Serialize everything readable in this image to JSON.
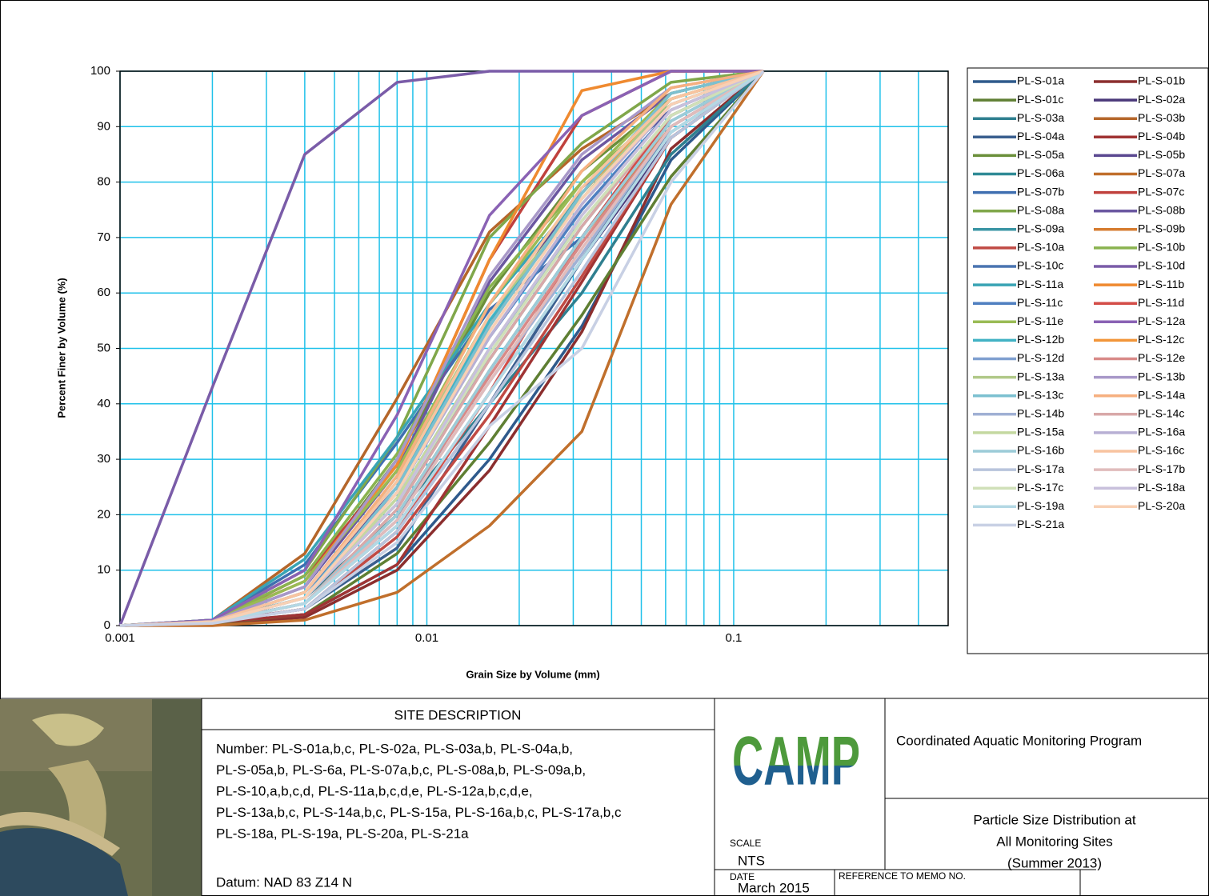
{
  "chart_data": {
    "type": "line",
    "x_label": "Grain Size by Volume (mm)",
    "y_label": "Percent Finer by Volume (%)",
    "log_x": true,
    "grid": true,
    "x": [
      0.001,
      0.002,
      0.004,
      0.008,
      0.016,
      0.032,
      0.0625,
      0.125
    ],
    "xlim": [
      0.001,
      0.5
    ],
    "xticks": [
      0.001,
      0.01,
      0.1
    ],
    "xgrid": [
      0.002,
      0.003,
      0.004,
      0.005,
      0.006,
      0.007,
      0.008,
      0.009,
      0.02,
      0.03,
      0.04,
      0.05,
      0.06,
      0.07,
      0.08,
      0.09,
      0.2,
      0.3,
      0.4
    ],
    "ylim": [
      0,
      100
    ],
    "yticks": [
      0,
      10,
      20,
      30,
      40,
      50,
      60,
      70,
      80,
      90,
      100
    ],
    "legend_position": "right",
    "series": [
      {
        "name": "PL-S-01a",
        "color": "#2f5a8c",
        "values": [
          0,
          0.5,
          2,
          11,
          30,
          54,
          84,
          100
        ]
      },
      {
        "name": "PL-S-01b",
        "color": "#8b2e2e",
        "values": [
          0,
          0.3,
          1.5,
          10,
          28,
          53,
          86,
          100
        ]
      },
      {
        "name": "PL-S-01c",
        "color": "#5f7f33",
        "values": [
          0,
          0.4,
          2,
          13,
          33,
          56,
          81,
          100
        ]
      },
      {
        "name": "PL-S-02a",
        "color": "#4a3879",
        "values": [
          0,
          0.6,
          3,
          17,
          40,
          66,
          88,
          100
        ]
      },
      {
        "name": "PL-S-03a",
        "color": "#2f7f8f",
        "values": [
          0,
          0.8,
          5,
          20,
          40,
          60,
          85,
          100
        ]
      },
      {
        "name": "PL-S-03b",
        "color": "#b5662a",
        "values": [
          0,
          1,
          13,
          41,
          71,
          86,
          96,
          100
        ]
      },
      {
        "name": "PL-S-04a",
        "color": "#3b5f8f",
        "values": [
          0,
          0.5,
          3,
          14,
          40,
          66,
          90,
          100
        ]
      },
      {
        "name": "PL-S-04b",
        "color": "#a03434",
        "values": [
          0,
          0.5,
          2,
          11,
          36,
          62,
          88,
          100
        ]
      },
      {
        "name": "PL-S-05a",
        "color": "#6a8f3a",
        "values": [
          0,
          0.9,
          8,
          30,
          60,
          82,
          95,
          100
        ]
      },
      {
        "name": "PL-S-05b",
        "color": "#5a4890",
        "values": [
          0,
          0.7,
          6,
          25,
          54,
          79,
          93,
          100
        ]
      },
      {
        "name": "PL-S-06a",
        "color": "#2f8a96",
        "values": [
          0,
          0.6,
          4,
          18,
          42,
          66,
          89,
          100
        ]
      },
      {
        "name": "PL-S-07a",
        "color": "#c06f2c",
        "values": [
          0,
          0,
          1,
          6,
          18,
          35,
          76,
          100
        ]
      },
      {
        "name": "PL-S-07b",
        "color": "#3f6fb0",
        "values": [
          0,
          1,
          11,
          33,
          57,
          70,
          92,
          100
        ]
      },
      {
        "name": "PL-S-07c",
        "color": "#c0413d",
        "values": [
          0,
          0.8,
          9,
          29,
          66,
          92,
          100,
          100
        ]
      },
      {
        "name": "PL-S-08a",
        "color": "#80a74a",
        "values": [
          0,
          1,
          10,
          34,
          70,
          87,
          98,
          100
        ]
      },
      {
        "name": "PL-S-08b",
        "color": "#6b57a0",
        "values": [
          0,
          0.8,
          7,
          28,
          62,
          84,
          96,
          100
        ]
      },
      {
        "name": "PL-S-09a",
        "color": "#3a95a4",
        "values": [
          0,
          0.7,
          5,
          22,
          48,
          72,
          92,
          100
        ]
      },
      {
        "name": "PL-S-09b",
        "color": "#d67c30",
        "values": [
          0,
          0.6,
          4,
          20,
          46,
          70,
          90,
          100
        ]
      },
      {
        "name": "PL-S-10a",
        "color": "#c04a44",
        "values": [
          0,
          0.5,
          3,
          16,
          38,
          63,
          88,
          100
        ]
      },
      {
        "name": "PL-S-10b",
        "color": "#8ab34f",
        "values": [
          0,
          0.9,
          9,
          31,
          61,
          80,
          94,
          100
        ]
      },
      {
        "name": "PL-S-10c",
        "color": "#4a74b0",
        "values": [
          0,
          0.6,
          4,
          19,
          46,
          70,
          91,
          100
        ]
      },
      {
        "name": "PL-S-10d",
        "color": "#7a5ca8",
        "values": [
          0,
          43,
          85,
          98,
          100,
          100,
          100,
          100
        ]
      },
      {
        "name": "PL-S-11a",
        "color": "#3aa4b4",
        "values": [
          0,
          1,
          12,
          34,
          58,
          78,
          95,
          100
        ]
      },
      {
        "name": "PL-S-11b",
        "color": "#ef8a30",
        "values": [
          0,
          0.8,
          8,
          29,
          66,
          96.5,
          100,
          100
        ]
      },
      {
        "name": "PL-S-11c",
        "color": "#4f7fc0",
        "values": [
          0,
          0.7,
          6,
          24,
          52,
          75,
          93,
          100
        ]
      },
      {
        "name": "PL-S-11d",
        "color": "#d34d48",
        "values": [
          0,
          0.5,
          3,
          17,
          42,
          70,
          92,
          100
        ]
      },
      {
        "name": "PL-S-11e",
        "color": "#9abb55",
        "values": [
          0,
          0.8,
          8,
          28,
          58,
          80,
          96,
          100
        ]
      },
      {
        "name": "PL-S-12a",
        "color": "#8a62b4",
        "values": [
          0,
          1,
          10,
          38,
          74,
          92,
          100,
          100
        ]
      },
      {
        "name": "PL-S-12b",
        "color": "#42b2c4",
        "values": [
          0,
          0.7,
          6,
          26,
          55,
          77,
          94,
          100
        ]
      },
      {
        "name": "PL-S-12c",
        "color": "#f2963a",
        "values": [
          0,
          0.6,
          5,
          24,
          54,
          78,
          95,
          100
        ]
      },
      {
        "name": "PL-S-12d",
        "color": "#7f9fd0",
        "values": [
          0,
          0.6,
          5,
          23,
          50,
          73,
          92,
          100
        ]
      },
      {
        "name": "PL-S-12e",
        "color": "#d88a88",
        "values": [
          0,
          0.5,
          4,
          20,
          45,
          69,
          90,
          100
        ]
      },
      {
        "name": "PL-S-13a",
        "color": "#b0c888",
        "values": [
          0,
          0.7,
          6,
          27,
          56,
          77,
          95,
          100
        ]
      },
      {
        "name": "PL-S-13b",
        "color": "#a898c8",
        "values": [
          0,
          0.8,
          7,
          30,
          63,
          85,
          97,
          100
        ]
      },
      {
        "name": "PL-S-13c",
        "color": "#7cc0d0",
        "values": [
          0,
          0.6,
          5,
          25,
          54,
          78,
          96,
          100
        ]
      },
      {
        "name": "PL-S-14a",
        "color": "#f6b080",
        "values": [
          0,
          0.7,
          6,
          27,
          58,
          82,
          97,
          100
        ]
      },
      {
        "name": "PL-S-14b",
        "color": "#a0b0d4",
        "values": [
          0,
          0.5,
          4,
          19,
          44,
          67,
          90,
          100
        ]
      },
      {
        "name": "PL-S-14c",
        "color": "#d8a8a8",
        "values": [
          0,
          0.5,
          4,
          21,
          48,
          72,
          92,
          100
        ]
      },
      {
        "name": "PL-S-15a",
        "color": "#c4d8a0",
        "values": [
          0,
          0.6,
          5,
          23,
          50,
          74,
          93,
          100
        ]
      },
      {
        "name": "PL-S-16a",
        "color": "#b8b0d4",
        "values": [
          0,
          0.6,
          5,
          24,
          52,
          76,
          94,
          100
        ]
      },
      {
        "name": "PL-S-16b",
        "color": "#9cccd8",
        "values": [
          0,
          0.5,
          4,
          20,
          46,
          70,
          91,
          100
        ]
      },
      {
        "name": "PL-S-16c",
        "color": "#f8c4a0",
        "values": [
          0,
          0.7,
          6,
          26,
          56,
          79,
          95,
          100
        ]
      },
      {
        "name": "PL-S-17a",
        "color": "#b8c4dc",
        "values": [
          0,
          0.5,
          3,
          17,
          40,
          64,
          88,
          100
        ]
      },
      {
        "name": "PL-S-17b",
        "color": "#e0bcbc",
        "values": [
          0,
          0.5,
          4,
          19,
          44,
          68,
          90,
          100
        ]
      },
      {
        "name": "PL-S-17c",
        "color": "#d0e0b8",
        "values": [
          0,
          0.6,
          5,
          22,
          49,
          73,
          92,
          100
        ]
      },
      {
        "name": "PL-S-18a",
        "color": "#c8c0dc",
        "values": [
          0,
          0.6,
          5,
          22,
          50,
          74,
          93,
          100
        ]
      },
      {
        "name": "PL-S-19a",
        "color": "#b4d8e4",
        "values": [
          0,
          0.5,
          4,
          18,
          42,
          66,
          89,
          100
        ]
      },
      {
        "name": "PL-S-20a",
        "color": "#f8d0b4",
        "values": [
          0,
          0.6,
          5,
          24,
          53,
          77,
          94,
          100
        ]
      },
      {
        "name": "PL-S-21a",
        "color": "#c8d0e4",
        "values": [
          0,
          0.4,
          3,
          15,
          36,
          50,
          80,
          100
        ]
      }
    ]
  },
  "site_description": {
    "heading": "SITE DESCRIPTION",
    "lines": [
      "Number:  PL-S-01a,b,c, PL-S-02a, PL-S-03a,b, PL-S-04a,b,",
      "PL-S-05a,b, PL-S-6a, PL-S-07a,b,c, PL-S-08a,b, PL-S-09a,b,",
      "PL-S-10,a,b,c,d, PL-S-11a,b,c,d,e, PL-S-12a,b,c,d,e,",
      "PL-S-13a,b,c, PL-S-14a,b,c, PL-S-15a, PL-S-16a,b,c, PL-S-17a,b,c",
      "PL-S-18a, PL-S-19a, PL-S-20a, PL-S-21a"
    ],
    "datum": "Datum: NAD 83 Z14 N"
  },
  "logo": "CAMP",
  "scale_label": "SCALE",
  "scale": "NTS",
  "date_label": "DATE",
  "date": "March 2015",
  "memo_label": "REFERENCE TO MEMO NO.",
  "program": "Coordinated Aquatic Monitoring Program",
  "report_title": [
    "Particle Size Distribution at",
    "All Monitoring Sites",
    "(Summer 2013)"
  ]
}
